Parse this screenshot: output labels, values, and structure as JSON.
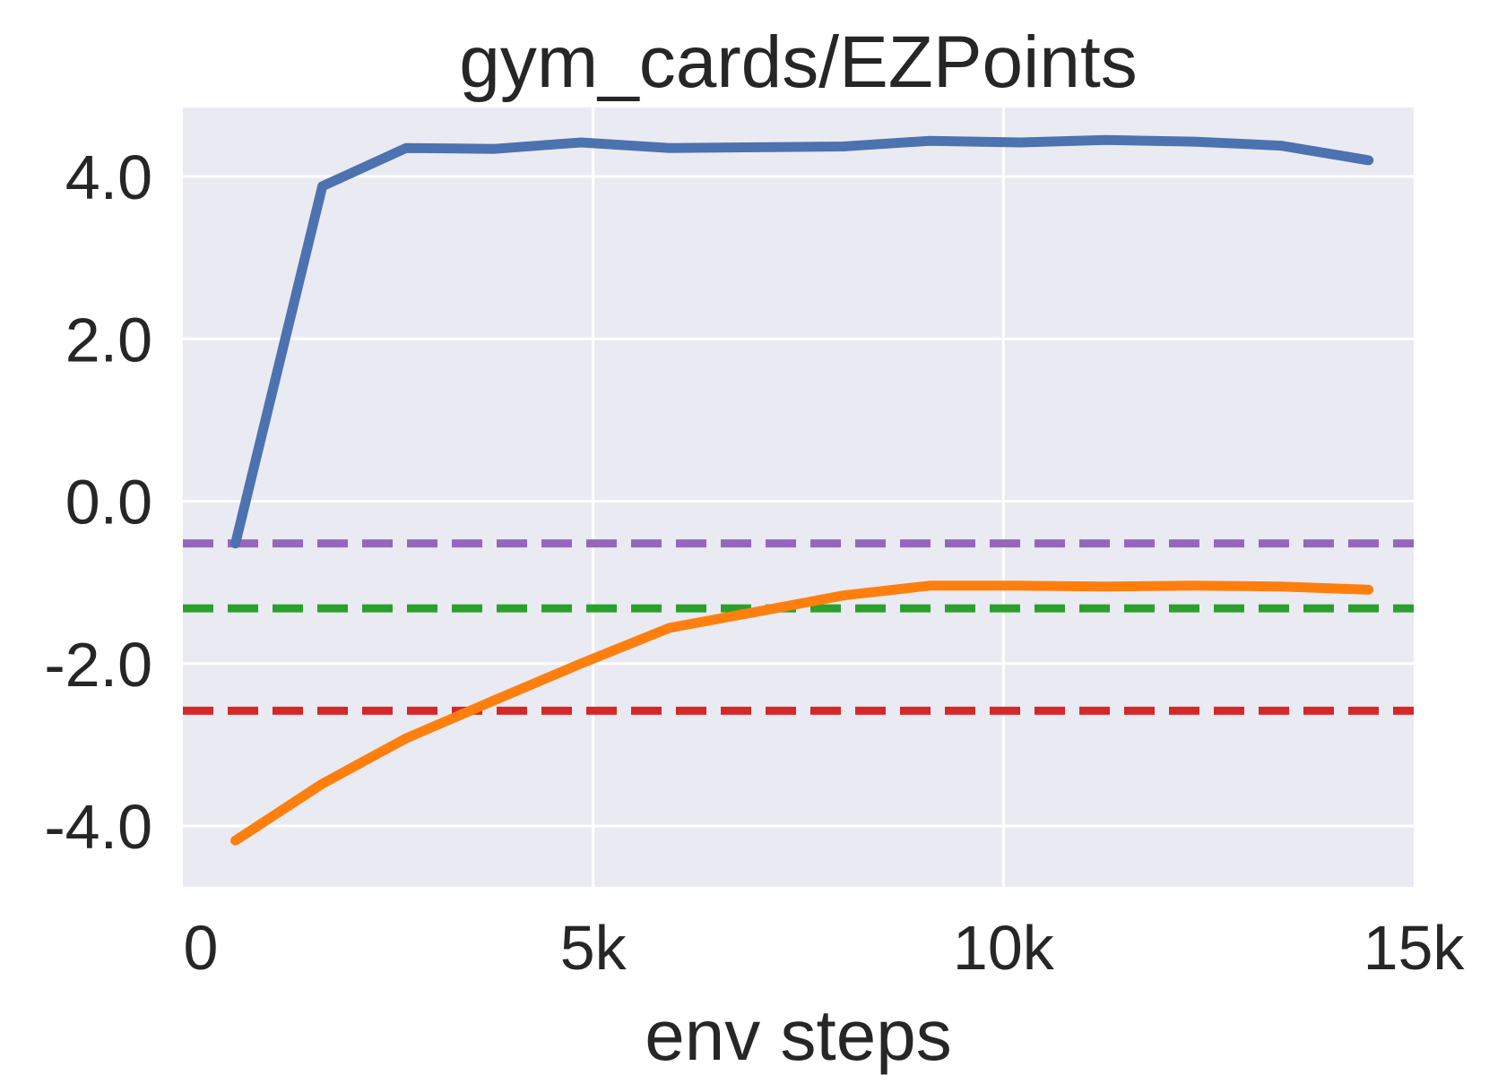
{
  "chart_data": {
    "type": "line",
    "title": "gym_cards/EZPoints",
    "xlabel": "env steps",
    "ylabel": "",
    "xlim": [
      0,
      15000
    ],
    "ylim": [
      -4.75,
      4.85
    ],
    "grid": true,
    "x_ticks": [
      {
        "value": 0,
        "label": "0"
      },
      {
        "value": 5000,
        "label": "5k"
      },
      {
        "value": 10000,
        "label": "10k"
      },
      {
        "value": 15000,
        "label": "15k"
      }
    ],
    "y_ticks": [
      {
        "value": 4.0,
        "label": "4.0"
      },
      {
        "value": 2.0,
        "label": "2.0"
      },
      {
        "value": 0.0,
        "label": "0.0"
      },
      {
        "value": -2.0,
        "label": "-2.0"
      },
      {
        "value": -4.0,
        "label": "-4.0"
      }
    ],
    "series": [
      {
        "color": "#4c72b0",
        "x": [
          640,
          1700,
          2720,
          3800,
          4850,
          5930,
          7000,
          8050,
          9100,
          10200,
          11250,
          12320,
          13380,
          14450
        ],
        "y": [
          -0.52,
          3.88,
          4.35,
          4.34,
          4.42,
          4.35,
          4.36,
          4.37,
          4.44,
          4.42,
          4.45,
          4.43,
          4.38,
          4.2
        ]
      },
      {
        "color": "#ff7f0e",
        "x": [
          640,
          1700,
          2720,
          3800,
          4850,
          5930,
          7000,
          8050,
          9100,
          10200,
          11250,
          12320,
          13380,
          14450
        ],
        "y": [
          -4.18,
          -3.48,
          -2.92,
          -2.45,
          -2.0,
          -1.56,
          -1.36,
          -1.16,
          -1.04,
          -1.04,
          -1.05,
          -1.04,
          -1.05,
          -1.09
        ]
      }
    ],
    "reference_lines": [
      {
        "y": -0.52,
        "color": "#9467bd",
        "style": "dashed"
      },
      {
        "y": -1.32,
        "color": "#2ca02c",
        "style": "dashed"
      },
      {
        "y": -2.58,
        "color": "#d62728",
        "style": "dashed"
      }
    ],
    "background_color": "#eaeaf2",
    "grid_color": "#ffffff"
  }
}
